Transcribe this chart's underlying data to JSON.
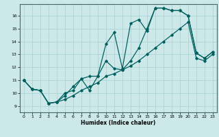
{
  "xlabel": "Humidex (Indice chaleur)",
  "bg_color": "#cce8e8",
  "grid_color": "#aad4d4",
  "line_color": "#006060",
  "xlim": [
    -0.5,
    23.5
  ],
  "ylim": [
    8.5,
    16.9
  ],
  "yticks": [
    9,
    10,
    11,
    12,
    13,
    14,
    15,
    16
  ],
  "xticks": [
    0,
    1,
    2,
    3,
    4,
    5,
    6,
    7,
    8,
    9,
    10,
    11,
    12,
    13,
    14,
    15,
    16,
    17,
    18,
    19,
    20,
    21,
    22,
    23
  ],
  "line1_x": [
    0,
    1,
    2,
    3,
    4,
    5,
    6,
    7,
    8,
    9,
    10,
    11,
    12,
    13,
    14,
    15,
    16,
    17,
    18,
    19,
    20,
    21,
    22,
    23
  ],
  "line1_y": [
    11.0,
    10.3,
    10.2,
    9.2,
    9.3,
    10.0,
    10.2,
    11.1,
    10.2,
    11.3,
    13.8,
    14.7,
    11.9,
    15.4,
    15.7,
    14.8,
    16.6,
    16.6,
    16.4,
    16.4,
    16.0,
    13.1,
    12.7,
    13.2
  ],
  "line2_x": [
    0,
    1,
    2,
    3,
    4,
    5,
    6,
    7,
    8,
    9,
    10,
    11,
    12,
    13,
    14,
    15,
    16,
    17,
    18,
    19,
    20,
    21,
    22,
    23
  ],
  "line2_y": [
    11.0,
    10.3,
    10.2,
    9.2,
    9.3,
    9.8,
    10.5,
    11.1,
    11.3,
    11.3,
    12.5,
    11.9,
    11.8,
    12.5,
    13.5,
    15.0,
    16.6,
    16.6,
    16.4,
    16.4,
    16.0,
    13.1,
    12.7,
    13.2
  ],
  "line3_x": [
    0,
    1,
    2,
    3,
    4,
    5,
    6,
    7,
    8,
    9,
    10,
    11,
    12,
    13,
    14,
    15,
    16,
    17,
    18,
    19,
    20,
    21,
    22,
    23
  ],
  "line3_y": [
    11.0,
    10.3,
    10.2,
    9.2,
    9.3,
    9.5,
    9.8,
    10.2,
    10.5,
    10.8,
    11.3,
    11.5,
    11.8,
    12.1,
    12.5,
    13.0,
    13.5,
    14.0,
    14.5,
    15.0,
    15.5,
    12.7,
    12.5,
    13.0
  ]
}
